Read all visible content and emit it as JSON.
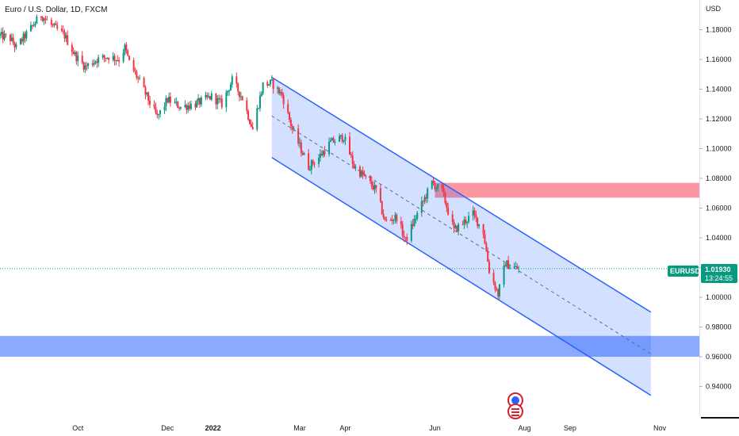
{
  "chart_title": "Euro / U.S. Dollar, 1D, FXCM",
  "currency_label": "USD",
  "price_tag": {
    "symbol": "EURUSD",
    "price": "1.01930",
    "countdown": "13:24:55"
  },
  "colors": {
    "up": "#089981",
    "down": "#F23645",
    "channel_line": "#2962FF",
    "channel_fill": "#2962FF",
    "resistance_zone": "#F7525F",
    "support_zone": "#2962FF",
    "price_line": "#089981"
  },
  "chart_data": {
    "type": "candlestick",
    "symbol": "EURUSD",
    "timeframe": "1D",
    "source": "FXCM",
    "y_axis": {
      "min": 0.92,
      "max": 1.2,
      "ticks": [
        "0.94000",
        "0.96000",
        "0.98000",
        "1.00000",
        "1.02000",
        "1.04000",
        "1.06000",
        "1.08000",
        "1.10000",
        "1.12000",
        "1.14000",
        "1.16000",
        "1.18000"
      ]
    },
    "x_axis": {
      "start": "2021-08-09",
      "end": "2022-11-28",
      "ticks": [
        {
          "label": "Oct",
          "date": "2021-10-01"
        },
        {
          "label": "Dec",
          "date": "2021-12-01"
        },
        {
          "label": "2022",
          "date": "2022-01-01",
          "bold": true
        },
        {
          "label": "Mar",
          "date": "2022-03-01"
        },
        {
          "label": "Apr",
          "date": "2022-04-01"
        },
        {
          "label": "Jun",
          "date": "2022-06-01"
        },
        {
          "label": "Aug",
          "date": "2022-08-01"
        },
        {
          "label": "Sep",
          "date": "2022-09-01"
        },
        {
          "label": "Nov",
          "date": "2022-11-01"
        }
      ]
    },
    "last_price": 1.0193,
    "price_path": [
      [
        "2021-08-09",
        1.176
      ],
      [
        "2021-08-16",
        1.174
      ],
      [
        "2021-08-20",
        1.168
      ],
      [
        "2021-08-30",
        1.181
      ],
      [
        "2021-09-06",
        1.19
      ],
      [
        "2021-09-13",
        1.183
      ],
      [
        "2021-09-22",
        1.176
      ],
      [
        "2021-09-29",
        1.163
      ],
      [
        "2021-10-06",
        1.155
      ],
      [
        "2021-10-14",
        1.16
      ],
      [
        "2021-10-22",
        1.162
      ],
      [
        "2021-10-29",
        1.16
      ],
      [
        "2021-11-02",
        1.168
      ],
      [
        "2021-11-05",
        1.158
      ],
      [
        "2021-11-12",
        1.145
      ],
      [
        "2021-11-19",
        1.131
      ],
      [
        "2021-11-24",
        1.121
      ],
      [
        "2021-12-01",
        1.133
      ],
      [
        "2021-12-10",
        1.128
      ],
      [
        "2021-12-20",
        1.13
      ],
      [
        "2021-12-31",
        1.135
      ],
      [
        "2022-01-07",
        1.13
      ],
      [
        "2022-01-14",
        1.146
      ],
      [
        "2022-01-21",
        1.134
      ],
      [
        "2022-01-28",
        1.113
      ],
      [
        "2022-02-04",
        1.143
      ],
      [
        "2022-02-10",
        1.144
      ],
      [
        "2022-02-17",
        1.136
      ],
      [
        "2022-02-24",
        1.113
      ],
      [
        "2022-03-07",
        1.088
      ],
      [
        "2022-03-14",
        1.094
      ],
      [
        "2022-03-22",
        1.104
      ],
      [
        "2022-03-31",
        1.108
      ],
      [
        "2022-04-07",
        1.088
      ],
      [
        "2022-04-14",
        1.081
      ],
      [
        "2022-04-22",
        1.072
      ],
      [
        "2022-04-28",
        1.051
      ],
      [
        "2022-05-06",
        1.054
      ],
      [
        "2022-05-12",
        1.038
      ],
      [
        "2022-05-20",
        1.056
      ],
      [
        "2022-05-30",
        1.077
      ],
      [
        "2022-06-06",
        1.071
      ],
      [
        "2022-06-14",
        1.045
      ],
      [
        "2022-06-20",
        1.05
      ],
      [
        "2022-06-27",
        1.056
      ],
      [
        "2022-07-04",
        1.044
      ],
      [
        "2022-07-08",
        1.018
      ],
      [
        "2022-07-14",
        1.002
      ],
      [
        "2022-07-19",
        1.023
      ],
      [
        "2022-07-22",
        1.021
      ],
      [
        "2022-07-28",
        1.019
      ]
    ],
    "annotations": {
      "channel": {
        "start_date": "2022-02-10",
        "end_date": "2022-10-26",
        "upper": [
          1.148,
          0.99
        ],
        "mid": [
          1.122,
          0.962
        ],
        "lower": [
          1.094,
          0.934
        ]
      },
      "resistance_zone": {
        "start_date": "2022-06-01",
        "end_date": "2022-11-28",
        "low": 1.067,
        "high": 1.077
      },
      "support_zone": {
        "start_date": "2021-08-09",
        "end_date": "2022-11-28",
        "low": 0.96,
        "high": 0.974
      },
      "current_price_line": 1.0193
    }
  }
}
